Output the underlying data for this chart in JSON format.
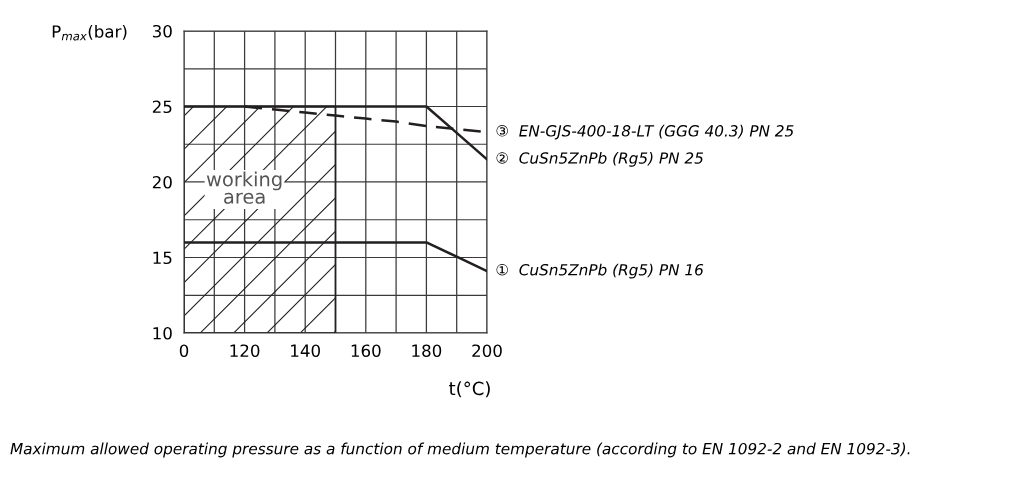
{
  "chart_data": {
    "type": "line",
    "ylabel": "P$_{max}$(bar)",
    "xlabel": "t(°C)",
    "categories": [
      "0",
      null,
      "120",
      null,
      "140",
      null,
      "160",
      null,
      "180",
      null,
      "200"
    ],
    "ylim": [
      10,
      30
    ],
    "yticks": [
      10,
      {
        "value": 12.5,
        "label": null
      },
      15,
      {
        "value": 17.5,
        "label": null
      },
      20,
      {
        "value": 22.5,
        "label": null
      },
      25,
      {
        "value": 27.5,
        "label": null
      },
      30
    ],
    "grid": true,
    "legend": false,
    "marker": "none",
    "series": [
      {
        "type": "area",
        "name": "working area",
        "color": "#231f20",
        "values": [
          25,
          25,
          25,
          25,
          25,
          25,
          null,
          null,
          null,
          null,
          null
        ]
      },
      {
        "name": "①  CuSn5ZnPb (Rg5) PN 16",
        "color": "#231f20",
        "line_style": "solid",
        "values": [
          16,
          16,
          16,
          16,
          16,
          16,
          16,
          16,
          16,
          15.05,
          14.1
        ]
      },
      {
        "name": "②  CuSn5ZnPb (Rg5) PN 25",
        "color": "#231f20",
        "line_style": "solid",
        "values": [
          25,
          25,
          25,
          25,
          25,
          25,
          25,
          25,
          25,
          23.25,
          21.5
        ]
      },
      {
        "name": "③  EN-GJS-400-18-LT (GGG 40.3) PN 25",
        "color": "#231f20",
        "line_style": "dashed",
        "values": [
          null,
          null,
          25,
          24.8,
          24.6,
          24.4,
          24.2,
          24.0,
          23.7,
          23.5,
          23.3
        ]
      }
    ],
    "annotations": [
      "Maximum allowed operating pressure as a function of medium temperature (according to EN 1092-2 and EN 1092-3)."
    ]
  }
}
